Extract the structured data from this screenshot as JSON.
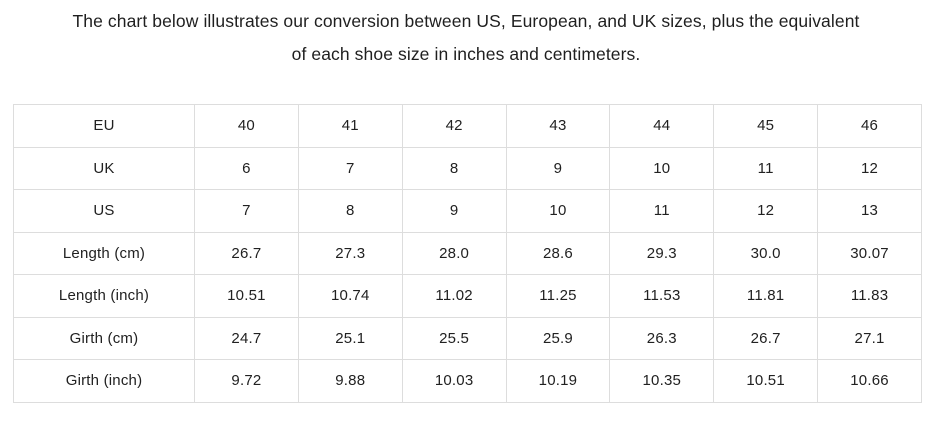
{
  "heading": {
    "line1": "The chart below illustrates our conversion between US, European, and UK sizes, plus the equivalent",
    "line2": "of each shoe size in inches and centimeters."
  },
  "table": {
    "rows": [
      {
        "label": "EU",
        "values": [
          "40",
          "41",
          "42",
          "43",
          "44",
          "45",
          "46"
        ]
      },
      {
        "label": "UK",
        "values": [
          "6",
          "7",
          "8",
          "9",
          "10",
          "11",
          "12"
        ]
      },
      {
        "label": "US",
        "values": [
          "7",
          "8",
          "9",
          "10",
          "11",
          "12",
          "13"
        ]
      },
      {
        "label": "Length (cm)",
        "values": [
          "26.7",
          "27.3",
          "28.0",
          "28.6",
          "29.3",
          "30.0",
          "30.07"
        ]
      },
      {
        "label": "Length (inch)",
        "values": [
          "10.51",
          "10.74",
          "11.02",
          "11.25",
          "11.53",
          "11.81",
          "11.83"
        ]
      },
      {
        "label": "Girth (cm)",
        "values": [
          "24.7",
          "25.1",
          "25.5",
          "25.9",
          "26.3",
          "26.7",
          "27.1"
        ]
      },
      {
        "label": "Girth (inch)",
        "values": [
          "9.72",
          "9.88",
          "10.03",
          "10.19",
          "10.35",
          "10.51",
          "10.66"
        ]
      }
    ]
  },
  "colors": {
    "text": "#212121",
    "border": "#dddddd",
    "background": "#ffffff"
  }
}
